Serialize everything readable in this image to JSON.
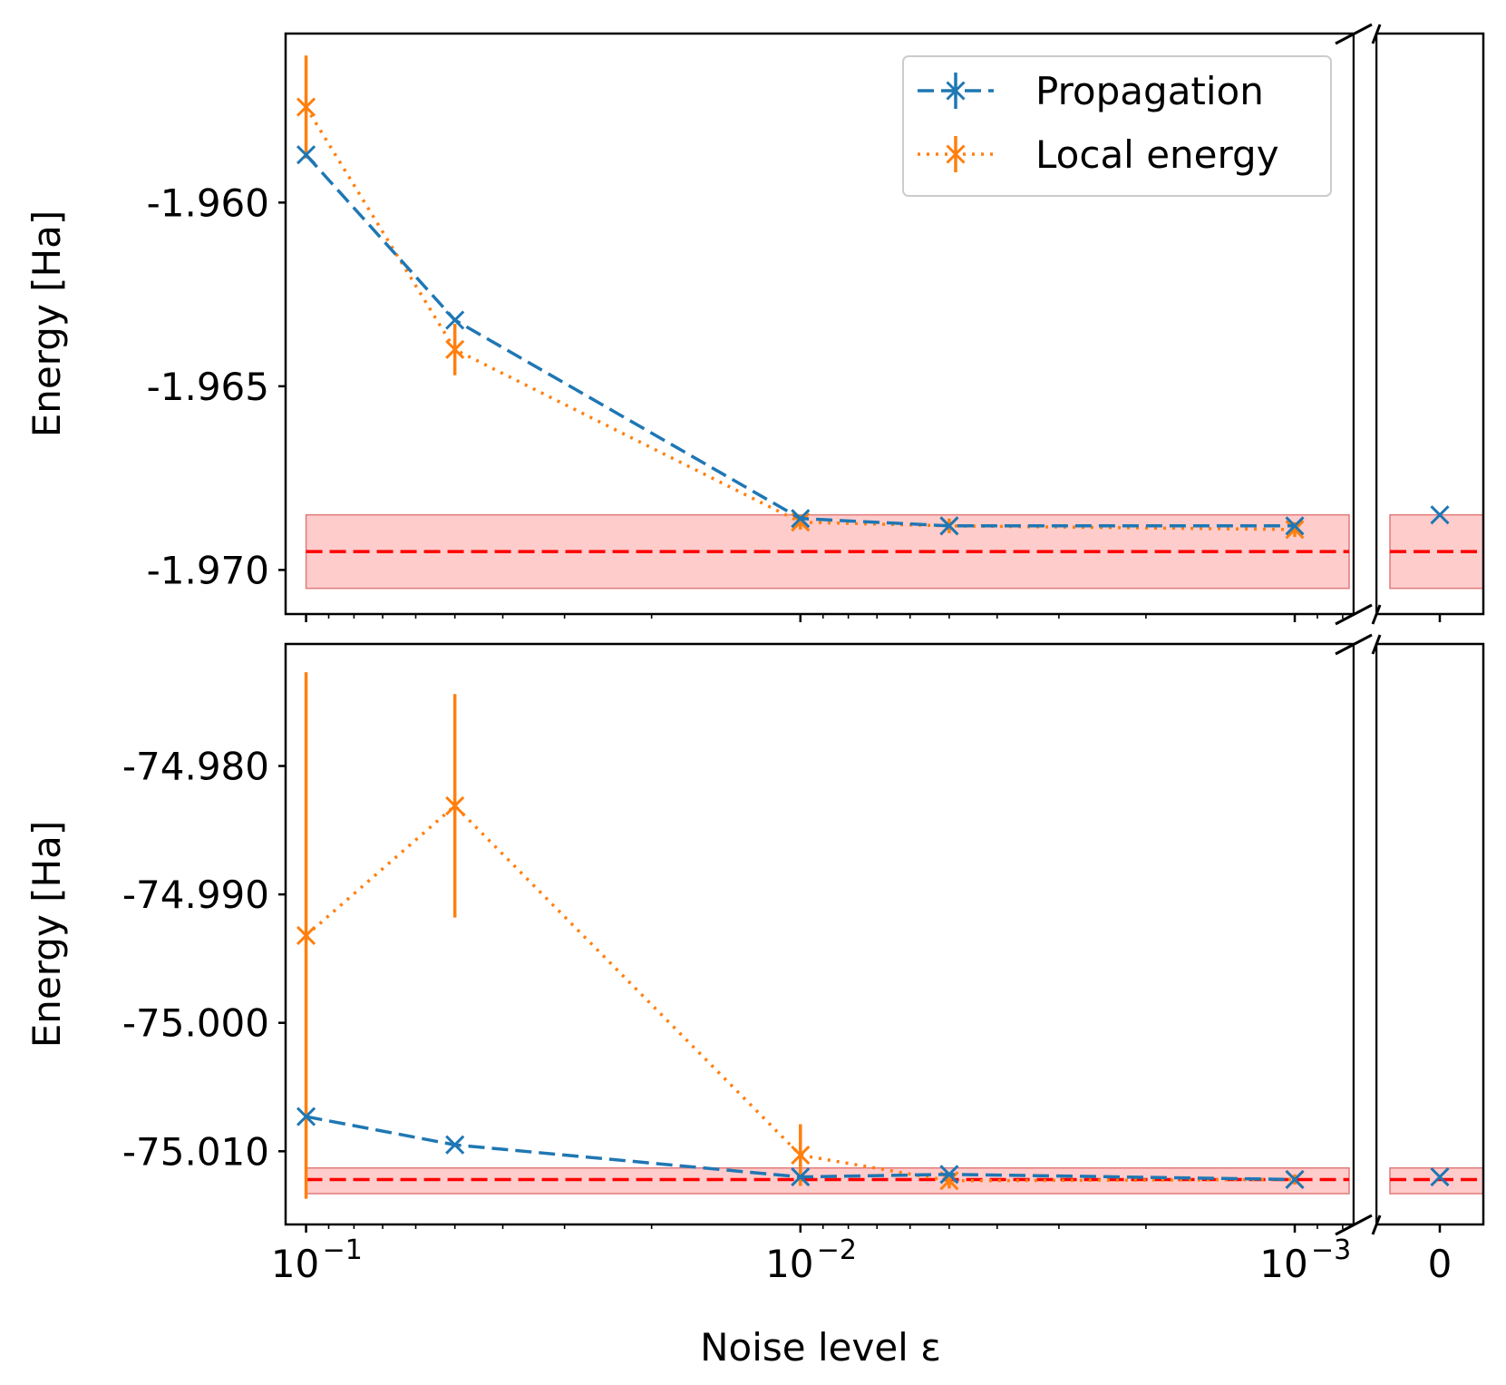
{
  "colors": {
    "propagation": "#1f77b4",
    "local_energy": "#ff7f0e",
    "reference": "#ff0000",
    "band": "#ff9999"
  },
  "chart_data": [
    {
      "type": "line",
      "panel": "top",
      "ylabel": "Energy [Ha]",
      "ylim": [
        -1.9712,
        -1.9554
      ],
      "y_ticks": [
        -1.96,
        -1.965,
        -1.97
      ],
      "y_tick_labels": [
        "-1.960",
        "-1.965",
        "-1.970"
      ],
      "reference": {
        "value": -1.9695,
        "band": [
          -1.9705,
          -1.9685
        ]
      },
      "series": [
        {
          "name": "Propagation",
          "style": "dashed",
          "color_key": "propagation",
          "x": [
            0.1,
            0.05,
            0.01,
            0.005,
            0.001,
            0
          ],
          "y": [
            -1.9587,
            -1.9632,
            -1.9686,
            -1.9688,
            -1.9688,
            -1.9685
          ],
          "err": [
            0,
            0,
            0,
            0,
            0,
            0
          ]
        },
        {
          "name": "Local energy",
          "style": "dotted",
          "color_key": "local_energy",
          "x": [
            0.1,
            0.05,
            0.01,
            0.005,
            0.001
          ],
          "y": [
            -1.9574,
            -1.964,
            -1.9687,
            -1.9688,
            -1.9689
          ],
          "err": [
            0.0014,
            0.0007,
            0.0002,
            0.0002,
            0.0002
          ]
        }
      ]
    },
    {
      "type": "line",
      "panel": "bottom",
      "ylabel": "Energy [Ha]",
      "xlabel": "Noise level ε",
      "ylim": [
        -75.0157,
        -74.9705
      ],
      "y_ticks": [
        -74.98,
        -74.99,
        -75.0,
        -75.01
      ],
      "y_tick_labels": [
        "-74.980",
        "-74.990",
        "-75.000",
        "-75.010"
      ],
      "reference": {
        "value": -75.0122,
        "band": [
          -75.0133,
          -75.0113
        ]
      },
      "series": [
        {
          "name": "Propagation",
          "style": "dashed",
          "color_key": "propagation",
          "x": [
            0.1,
            0.05,
            0.01,
            0.005,
            0.001,
            0
          ],
          "y": [
            -75.0073,
            -75.0095,
            -75.012,
            -75.0118,
            -75.0122,
            -75.012
          ],
          "err": [
            0,
            0,
            0,
            0,
            0,
            0
          ]
        },
        {
          "name": "Local energy",
          "style": "dotted",
          "color_key": "local_energy",
          "x": [
            0.1,
            0.05,
            0.01,
            0.005,
            0.001
          ],
          "y": [
            -74.9932,
            -74.9831,
            -75.0103,
            -75.0123,
            -75.0122
          ],
          "err": [
            0.0205,
            0.0087,
            0.0024,
            0.0006,
            0.0004
          ]
        }
      ]
    }
  ],
  "x_axis": {
    "scale": "log-reversed",
    "range": [
      0.11,
      0.00076
    ],
    "tick_labels": [
      {
        "base": "10",
        "exp": "−1",
        "value": 0.1
      },
      {
        "base": "10",
        "exp": "−2",
        "value": 0.01
      },
      {
        "base": "10",
        "exp": "−3",
        "value": 0.001
      }
    ],
    "zero_label": "0"
  },
  "legend": {
    "position": "top-right",
    "entries": [
      "Propagation",
      "Local energy"
    ]
  }
}
